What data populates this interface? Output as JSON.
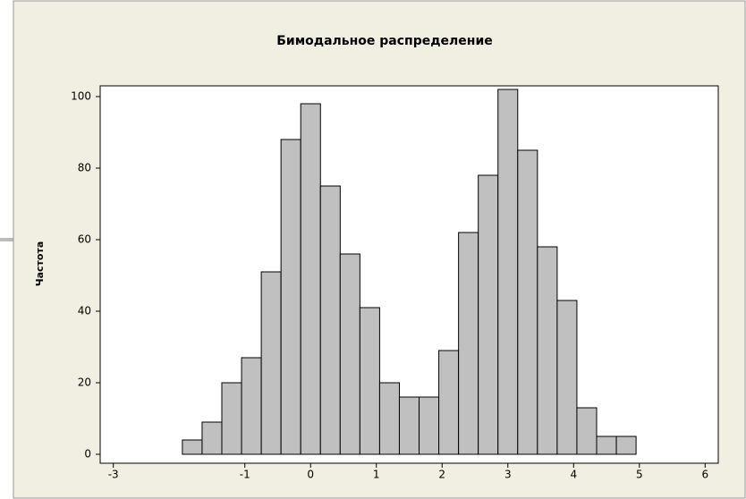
{
  "chart_data": {
    "type": "histogram",
    "title": "Бимодальное распределение",
    "y_label": "Частота",
    "bins": [
      -1.95,
      -1.65,
      -1.35,
      -1.05,
      -0.75,
      -0.45,
      -0.15,
      0.15,
      0.45,
      0.75,
      1.05,
      1.35,
      1.65,
      1.95,
      2.25,
      2.55,
      2.85,
      3.15,
      3.45,
      3.75,
      4.05,
      4.35,
      4.65,
      4.95
    ],
    "values": [
      4,
      9,
      20,
      27,
      51,
      88,
      98,
      75,
      56,
      41,
      20,
      16,
      16,
      29,
      62,
      78,
      102,
      85,
      58,
      43,
      13,
      5,
      5
    ],
    "color": "#c0c0c0",
    "xlim": [
      -3.2,
      6.2
    ],
    "xticks": [
      -3,
      -1,
      0,
      1,
      2,
      3,
      4,
      5,
      6
    ],
    "ylim": [
      -2.5,
      103
    ],
    "yticks": [
      0,
      20,
      40,
      60,
      80,
      100
    ]
  }
}
